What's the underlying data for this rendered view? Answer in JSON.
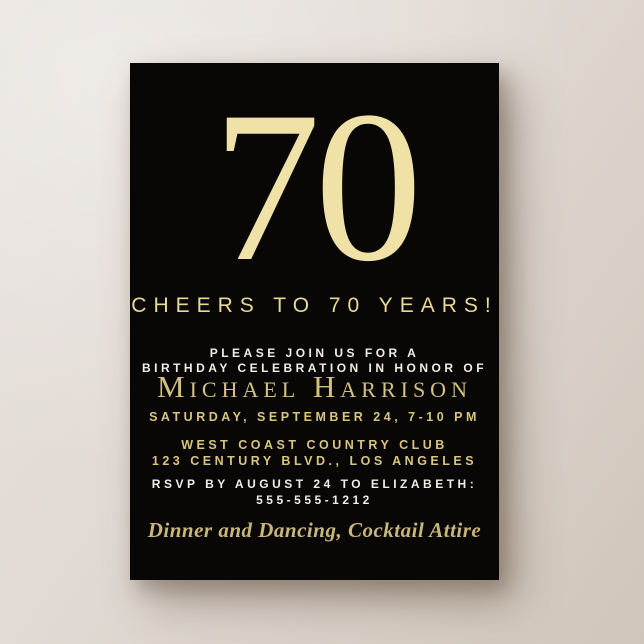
{
  "backdrop": {
    "color_top_left": "#E7E2DD",
    "color_bottom_right": "#D0C5BA"
  },
  "card": {
    "bg_color": "#080706",
    "big_number": "70",
    "headline": "CHEERS TO 70 YEARS!",
    "intro_line1": "PLEASE JOIN US FOR A",
    "intro_line2": "BIRTHDAY CELEBRATION IN HONOR OF",
    "honoree_name": "Michael Harrison",
    "datetime_line": "SATURDAY, SEPTEMBER 24, 7-10 PM",
    "venue_name": "WEST COAST COUNTRY CLUB",
    "venue_address": "123 CENTURY BLVD., LOS ANGELES",
    "rsvp_line": "RSVP BY AUGUST 24 TO ELIZABETH:",
    "rsvp_phone": "555-555-1212",
    "attire_note": "Dinner and Dancing, Cocktail Attire",
    "colors": {
      "pale_gold": "#F0E1A7",
      "headline_gold": "#E9D999",
      "name_gold": "#D4C083",
      "detail_gold": "#D8C57E",
      "attire_gold": "#C9B678",
      "warm_white": "#F2EDE4"
    }
  }
}
